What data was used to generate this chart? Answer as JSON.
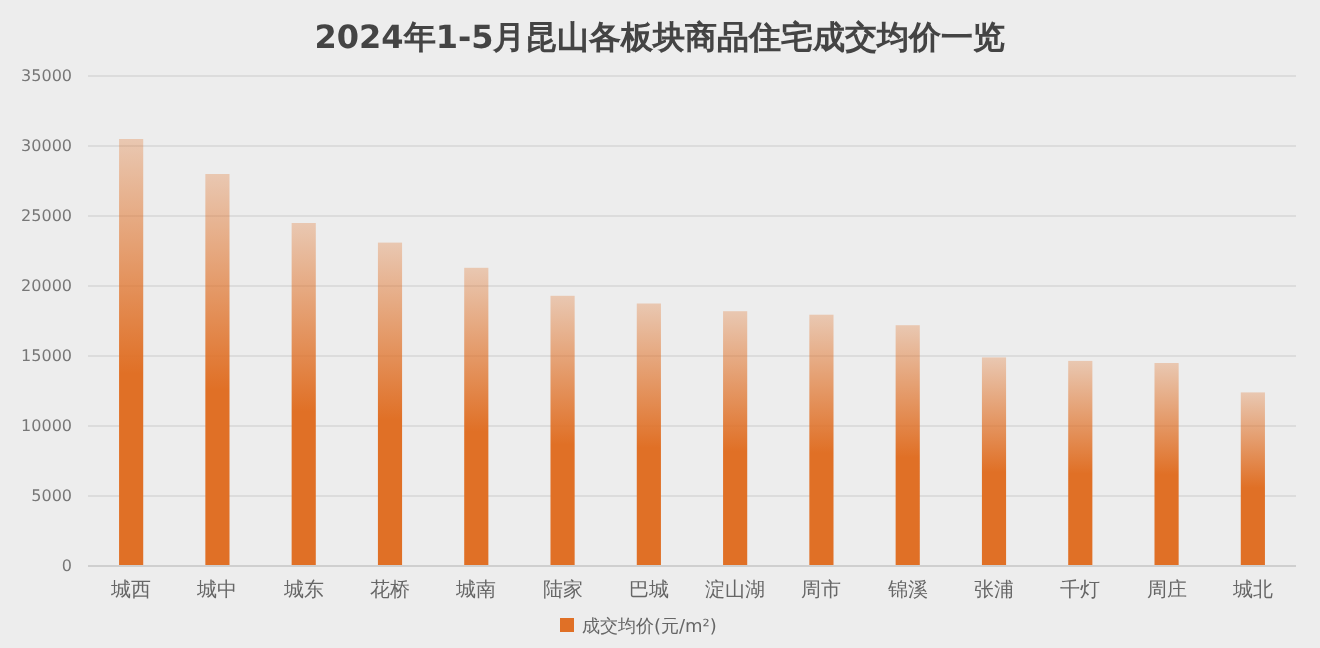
{
  "chart_data": {
    "type": "bar",
    "title": "2024年1-5月昆山各板块商品住宅成交均价一览",
    "categories": [
      "城西",
      "城中",
      "城东",
      "花桥",
      "城南",
      "陆家",
      "巴城",
      "淀山湖",
      "周市",
      "锦溪",
      "张浦",
      "千灯",
      "周庄",
      "城北"
    ],
    "series": [
      {
        "name": "成交均价(元/m²)",
        "color": "#e07026",
        "values": [
          30500,
          28000,
          24500,
          23100,
          21300,
          19300,
          18750,
          18200,
          17950,
          17200,
          14900,
          14650,
          14500,
          12400
        ]
      }
    ],
    "ylim": [
      0,
      35000
    ],
    "yticks": [
      0,
      5000,
      10000,
      15000,
      20000,
      25000,
      30000,
      35000
    ],
    "grid": "y",
    "legend": "bottom"
  }
}
